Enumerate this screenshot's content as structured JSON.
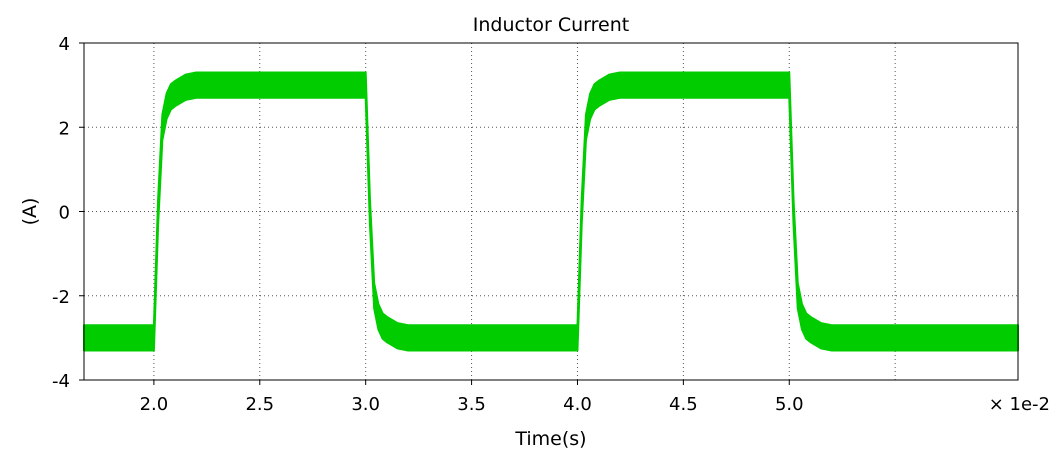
{
  "chart_data": {
    "type": "line",
    "title": "Inductor Current",
    "xlabel": "Time(s)",
    "ylabel": "(A)",
    "x_multiplier_label": "× 1e-2",
    "xlim": [
      1.67,
      6.08
    ],
    "ylim": [
      -4,
      4
    ],
    "x_ticks": [
      2.0,
      2.5,
      3.0,
      3.5,
      4.0,
      4.5,
      5.0
    ],
    "x_tick_labels": [
      "2.0",
      "2.5",
      "3.0",
      "3.5",
      "4.0",
      "4.5",
      "5.0"
    ],
    "x_grid_extra": [
      5.5
    ],
    "y_ticks": [
      -4,
      -2,
      0,
      2,
      4
    ],
    "y_tick_labels": [
      "-4",
      "-2",
      "0",
      "2",
      "4"
    ],
    "grid": true,
    "series": [
      {
        "color": "#00cc00",
        "ripple_band_A": 0.6,
        "x": [
          1.67,
          2.0,
          2.02,
          2.04,
          2.06,
          2.08,
          2.1,
          2.15,
          2.2,
          2.3,
          2.5,
          2.8,
          3.0,
          3.02,
          3.04,
          3.06,
          3.08,
          3.1,
          3.15,
          3.2,
          3.3,
          3.5,
          3.8,
          4.0,
          4.02,
          4.04,
          4.06,
          4.08,
          4.1,
          4.15,
          4.2,
          4.3,
          4.5,
          4.8,
          5.0,
          5.02,
          5.04,
          5.06,
          5.08,
          5.1,
          5.15,
          5.2,
          5.3,
          5.5,
          5.8,
          6.08
        ],
        "y": [
          -3.0,
          -3.0,
          0.0,
          2.0,
          2.5,
          2.72,
          2.8,
          2.95,
          3.0,
          3.0,
          3.0,
          3.0,
          3.0,
          0.0,
          -2.0,
          -2.5,
          -2.72,
          -2.8,
          -2.95,
          -3.0,
          -3.0,
          -3.0,
          -3.0,
          -3.0,
          0.0,
          2.0,
          2.5,
          2.72,
          2.8,
          2.95,
          3.0,
          3.0,
          3.0,
          3.0,
          3.0,
          0.0,
          -2.0,
          -2.5,
          -2.72,
          -2.8,
          -2.95,
          -3.0,
          -3.0,
          -3.0,
          -3.0,
          -3.0
        ]
      }
    ]
  }
}
